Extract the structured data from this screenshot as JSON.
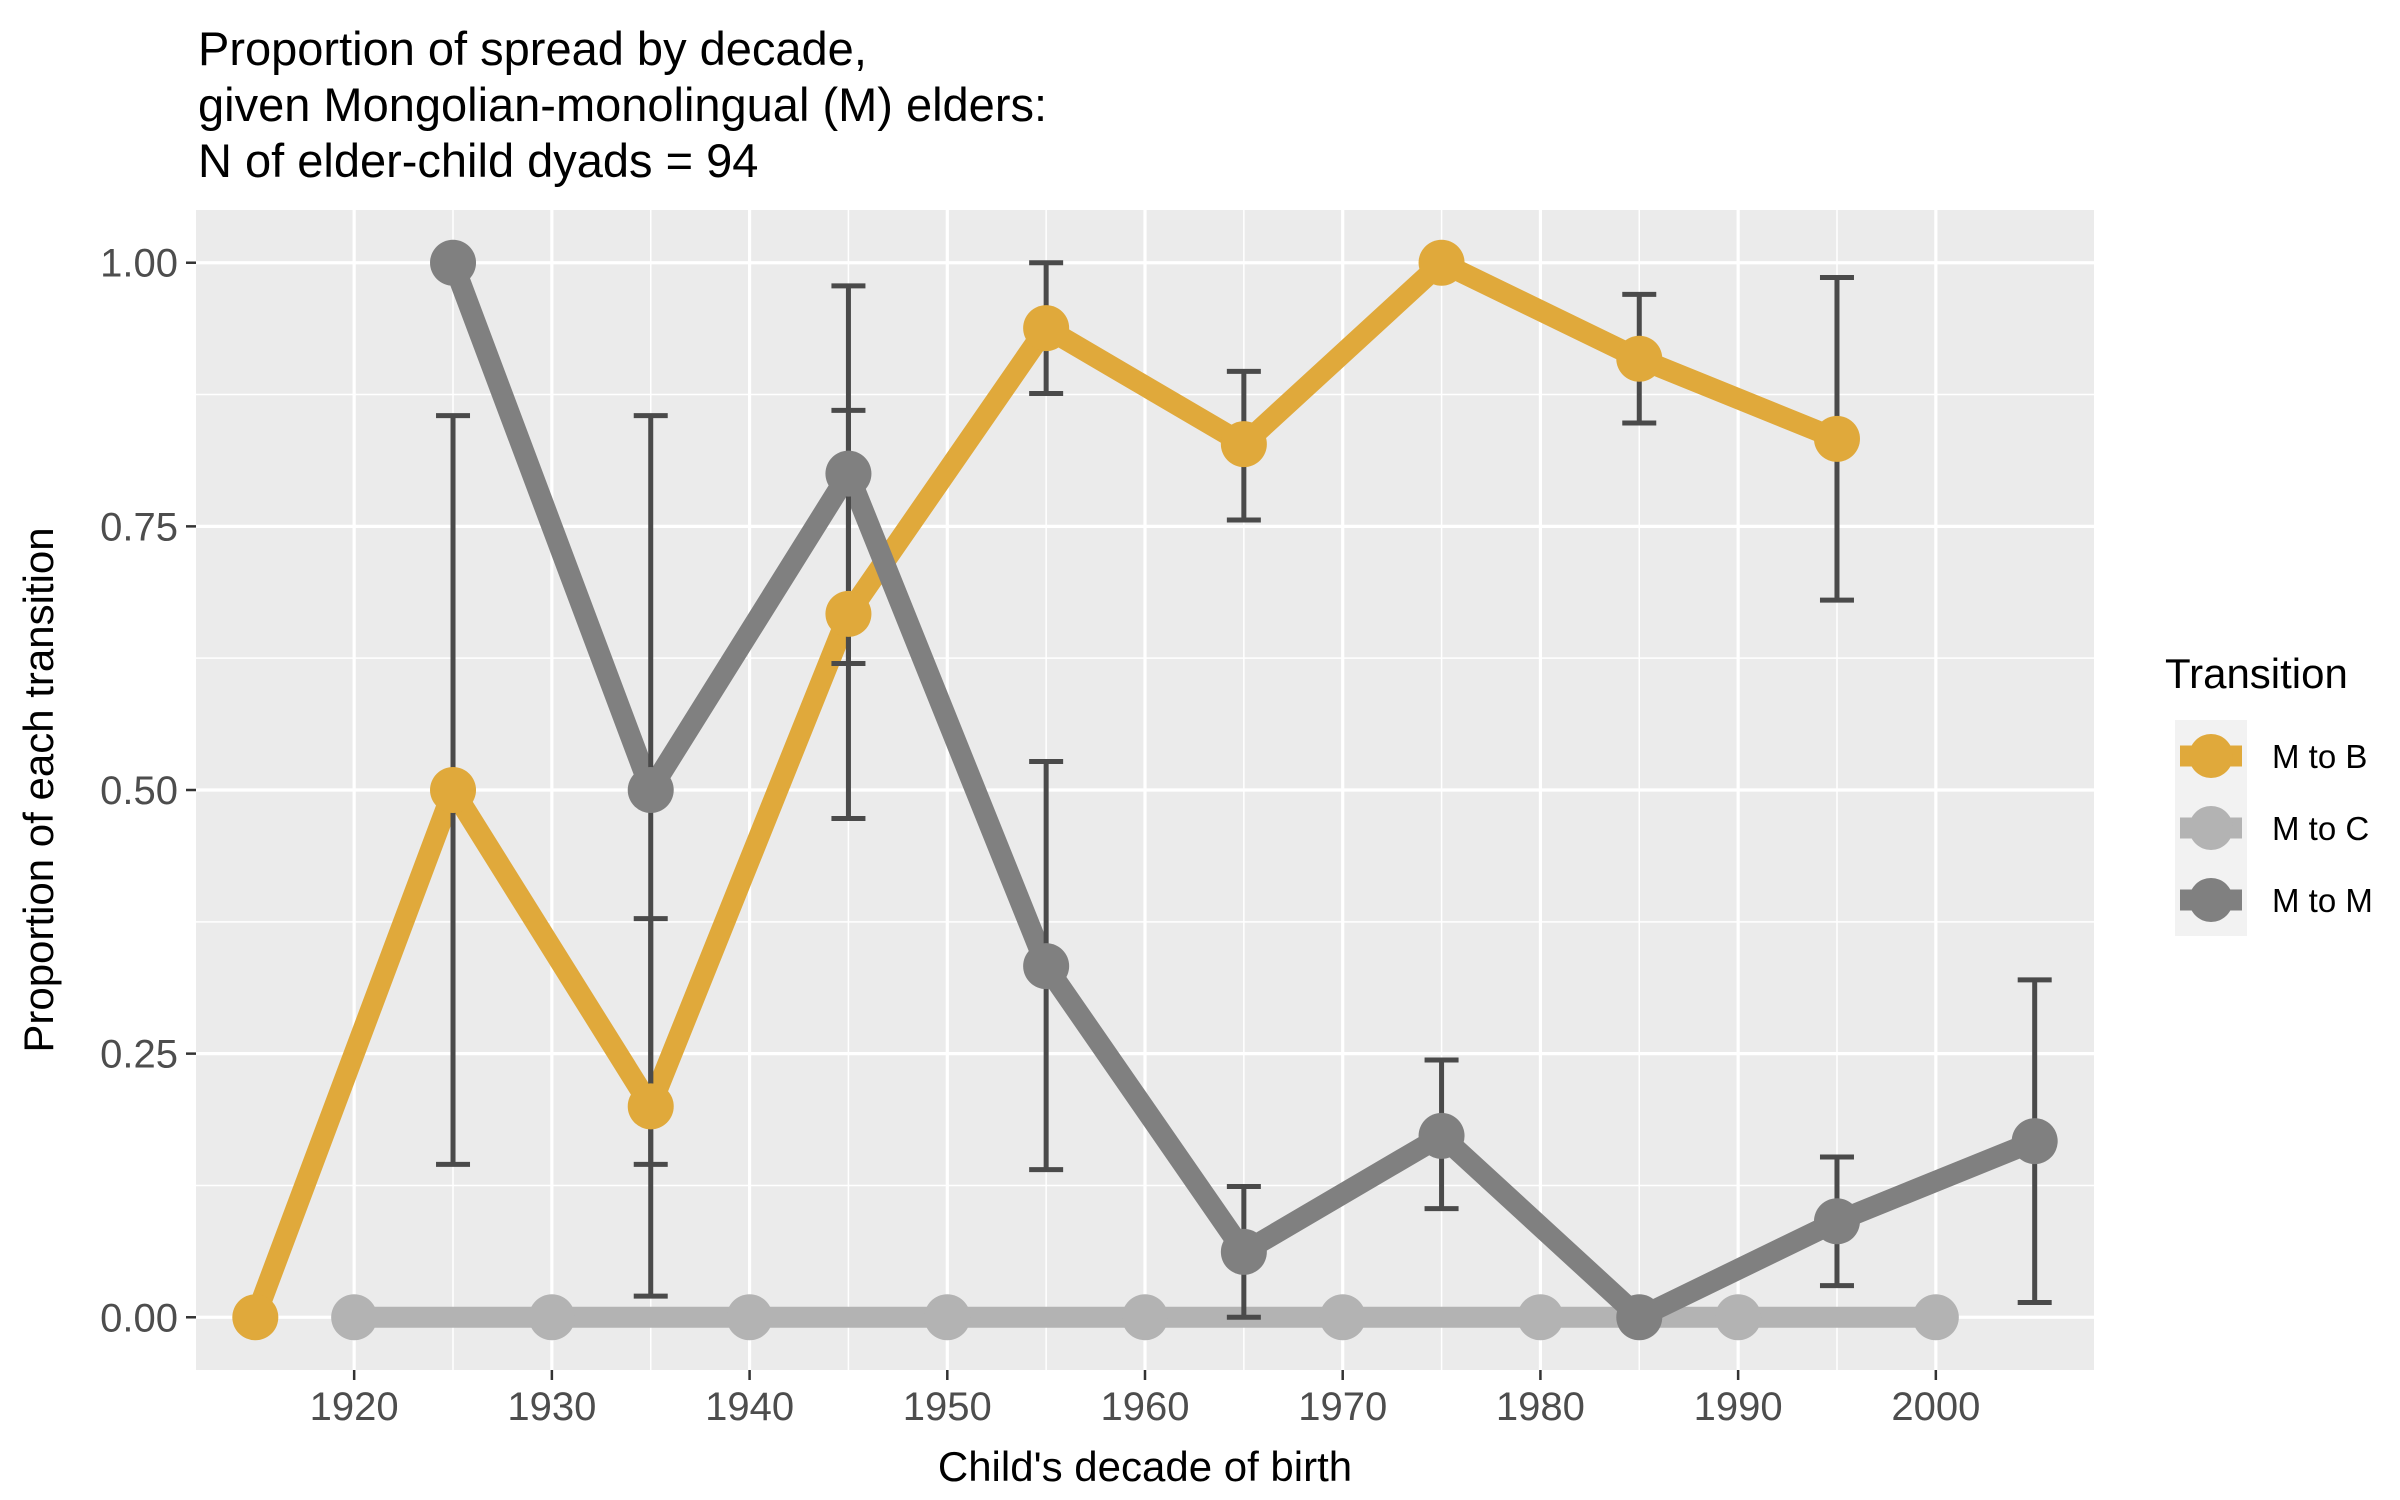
{
  "chart_data": {
    "type": "line",
    "title_lines": [
      "Proportion of spread by decade,",
      "given Mongolian-monolingual (M) elders:",
      "N of elder-child dyads = 94"
    ],
    "xlabel": "Child's decade of birth",
    "ylabel": "Proportion of each transition",
    "xlim": [
      1912,
      2008
    ],
    "ylim": [
      -0.05,
      1.05
    ],
    "x_ticks": [
      1920,
      1930,
      1940,
      1950,
      1960,
      1970,
      1980,
      1990,
      2000
    ],
    "x_tick_labels": [
      "1920",
      "1930",
      "1940",
      "1950",
      "1960",
      "1970",
      "1980",
      "1990",
      "2000"
    ],
    "y_ticks": [
      0,
      0.25,
      0.5,
      0.75,
      1.0
    ],
    "y_tick_labels": [
      "0.00",
      "0.25",
      "0.50",
      "0.75",
      "1.00"
    ],
    "grid": true,
    "legend": {
      "title": "Transition",
      "position": "right"
    },
    "series": [
      {
        "name": "M to B",
        "color": "#E0A93B",
        "points": [
          {
            "x": 1920,
            "y": 0.0,
            "lo": null,
            "hi": null
          },
          {
            "x": 1930,
            "y": 0.5,
            "lo": 0.145,
            "hi": 0.855
          },
          {
            "x": 1940,
            "y": 0.2,
            "lo": 0.02,
            "hi": 0.378
          },
          {
            "x": 1950,
            "y": 0.667,
            "lo": 0.473,
            "hi": 0.86
          },
          {
            "x": 1960,
            "y": 0.938,
            "lo": 0.876,
            "hi": 1.0
          },
          {
            "x": 1970,
            "y": 0.828,
            "lo": 0.756,
            "hi": 0.897
          },
          {
            "x": 1980,
            "y": 1.0,
            "lo": null,
            "hi": null
          },
          {
            "x": 1990,
            "y": 0.909,
            "lo": 0.848,
            "hi": 0.97
          },
          {
            "x": 2000,
            "y": 0.833,
            "lo": 0.68,
            "hi": 0.986
          }
        ]
      },
      {
        "name": "M to C",
        "color": "#B3B3B3",
        "points": [
          {
            "x": 1920,
            "y": 0,
            "lo": null,
            "hi": null
          },
          {
            "x": 1930,
            "y": 0,
            "lo": null,
            "hi": null
          },
          {
            "x": 1940,
            "y": 0,
            "lo": null,
            "hi": null
          },
          {
            "x": 1950,
            "y": 0,
            "lo": null,
            "hi": null
          },
          {
            "x": 1960,
            "y": 0,
            "lo": null,
            "hi": null
          },
          {
            "x": 1970,
            "y": 0,
            "lo": null,
            "hi": null
          },
          {
            "x": 1980,
            "y": 0,
            "lo": null,
            "hi": null
          },
          {
            "x": 1990,
            "y": 0,
            "lo": null,
            "hi": null
          },
          {
            "x": 2000,
            "y": 0,
            "lo": null,
            "hi": null
          }
        ]
      },
      {
        "name": "M to M",
        "color": "#808080",
        "points": [
          {
            "x": 1920,
            "y": 1.0,
            "lo": null,
            "hi": null
          },
          {
            "x": 1930,
            "y": 0.5,
            "lo": 0.145,
            "hi": 0.855
          },
          {
            "x": 1940,
            "y": 0.8,
            "lo": 0.62,
            "hi": 0.978
          },
          {
            "x": 1950,
            "y": 0.333,
            "lo": 0.14,
            "hi": 0.527
          },
          {
            "x": 1960,
            "y": 0.062,
            "lo": 0.0,
            "hi": 0.124
          },
          {
            "x": 1970,
            "y": 0.172,
            "lo": 0.103,
            "hi": 0.244
          },
          {
            "x": 1980,
            "y": 0.0,
            "lo": null,
            "hi": null
          },
          {
            "x": 1990,
            "y": 0.091,
            "lo": 0.03,
            "hi": 0.152
          },
          {
            "x": 2000,
            "y": 0.167,
            "lo": 0.014,
            "hi": 0.32
          }
        ]
      }
    ]
  }
}
